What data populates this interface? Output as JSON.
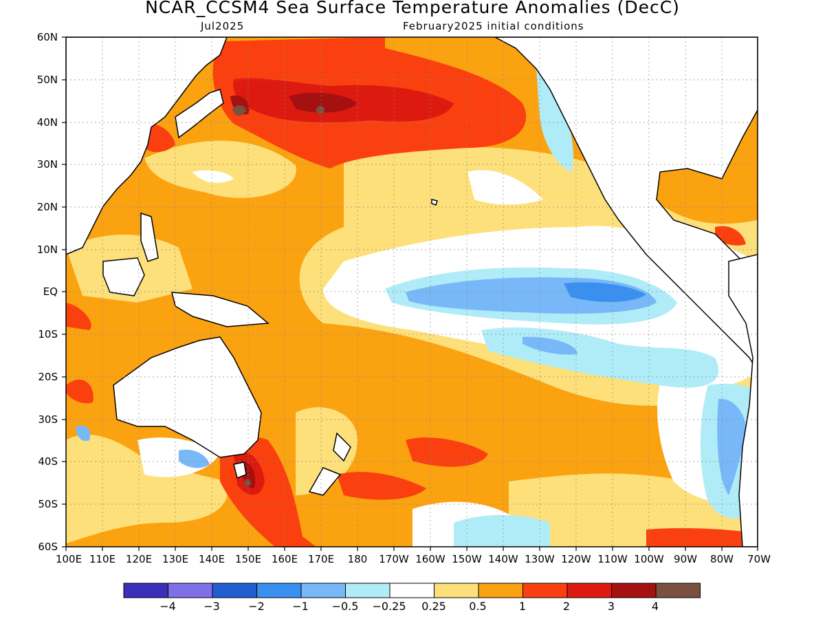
{
  "title": "NCAR_CCSM4 Sea Surface Temperature Anomalies (DecC)",
  "subtitle_left": "Jul2025",
  "subtitle_right": "February2025 initial conditions",
  "lat_labels": [
    "60N",
    "50N",
    "40N",
    "30N",
    "20N",
    "10N",
    "EQ",
    "10S",
    "20S",
    "30S",
    "40S",
    "50S",
    "60S"
  ],
  "lon_labels": [
    "100E",
    "110E",
    "120E",
    "130E",
    "140E",
    "150E",
    "160E",
    "170E",
    "180",
    "170W",
    "160W",
    "150W",
    "140W",
    "130W",
    "120W",
    "110W",
    "100W",
    "90W",
    "80W",
    "70W"
  ],
  "colorbar": {
    "colors": [
      "#3a2fb8",
      "#8070e8",
      "#1f5fd0",
      "#3a90f0",
      "#78b8f8",
      "#b0ecf8",
      "#ffffff",
      "#fde07a",
      "#fba211",
      "#fb4010",
      "#dd1a10",
      "#a51010",
      "#7a5040"
    ],
    "labels": [
      "-4",
      "-3",
      "-2",
      "-1",
      "-0.5",
      "-0.25",
      "0.25",
      "0.5",
      "1",
      "2",
      "3",
      "4"
    ]
  },
  "legend_units": "DecC",
  "map": {
    "lat_range": [
      -60,
      60
    ],
    "lon_range": [
      100,
      290
    ],
    "grid": true,
    "features": [
      "Warm anomaly (2-4) in North Pacific near 40N",
      "Cool anomaly (-1 to -2) in eastern equatorial Pacific",
      "Warm anomaly (3) near Tasman Sea"
    ]
  }
}
